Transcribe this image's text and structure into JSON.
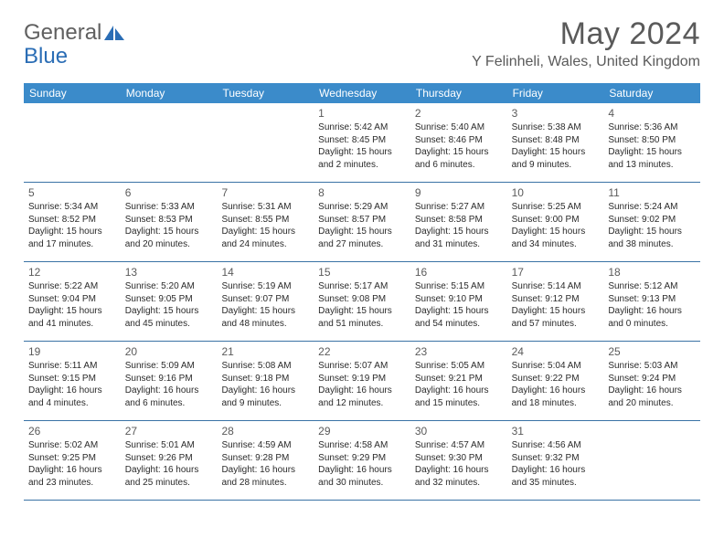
{
  "brand": {
    "part1": "General",
    "part2": "Blue"
  },
  "title": "May 2024",
  "location": "Y Felinheli, Wales, United Kingdom",
  "colors": {
    "header_bg": "#3b8bca",
    "header_text": "#ffffff",
    "border": "#3a72a5",
    "text": "#2a2a2a",
    "muted": "#5a5a5a"
  },
  "dayNames": [
    "Sunday",
    "Monday",
    "Tuesday",
    "Wednesday",
    "Thursday",
    "Friday",
    "Saturday"
  ],
  "weeks": [
    [
      null,
      null,
      null,
      {
        "n": "1",
        "sr": "5:42 AM",
        "ss": "8:45 PM",
        "dl": "15 hours and 2 minutes."
      },
      {
        "n": "2",
        "sr": "5:40 AM",
        "ss": "8:46 PM",
        "dl": "15 hours and 6 minutes."
      },
      {
        "n": "3",
        "sr": "5:38 AM",
        "ss": "8:48 PM",
        "dl": "15 hours and 9 minutes."
      },
      {
        "n": "4",
        "sr": "5:36 AM",
        "ss": "8:50 PM",
        "dl": "15 hours and 13 minutes."
      }
    ],
    [
      {
        "n": "5",
        "sr": "5:34 AM",
        "ss": "8:52 PM",
        "dl": "15 hours and 17 minutes."
      },
      {
        "n": "6",
        "sr": "5:33 AM",
        "ss": "8:53 PM",
        "dl": "15 hours and 20 minutes."
      },
      {
        "n": "7",
        "sr": "5:31 AM",
        "ss": "8:55 PM",
        "dl": "15 hours and 24 minutes."
      },
      {
        "n": "8",
        "sr": "5:29 AM",
        "ss": "8:57 PM",
        "dl": "15 hours and 27 minutes."
      },
      {
        "n": "9",
        "sr": "5:27 AM",
        "ss": "8:58 PM",
        "dl": "15 hours and 31 minutes."
      },
      {
        "n": "10",
        "sr": "5:25 AM",
        "ss": "9:00 PM",
        "dl": "15 hours and 34 minutes."
      },
      {
        "n": "11",
        "sr": "5:24 AM",
        "ss": "9:02 PM",
        "dl": "15 hours and 38 minutes."
      }
    ],
    [
      {
        "n": "12",
        "sr": "5:22 AM",
        "ss": "9:04 PM",
        "dl": "15 hours and 41 minutes."
      },
      {
        "n": "13",
        "sr": "5:20 AM",
        "ss": "9:05 PM",
        "dl": "15 hours and 45 minutes."
      },
      {
        "n": "14",
        "sr": "5:19 AM",
        "ss": "9:07 PM",
        "dl": "15 hours and 48 minutes."
      },
      {
        "n": "15",
        "sr": "5:17 AM",
        "ss": "9:08 PM",
        "dl": "15 hours and 51 minutes."
      },
      {
        "n": "16",
        "sr": "5:15 AM",
        "ss": "9:10 PM",
        "dl": "15 hours and 54 minutes."
      },
      {
        "n": "17",
        "sr": "5:14 AM",
        "ss": "9:12 PM",
        "dl": "15 hours and 57 minutes."
      },
      {
        "n": "18",
        "sr": "5:12 AM",
        "ss": "9:13 PM",
        "dl": "16 hours and 0 minutes."
      }
    ],
    [
      {
        "n": "19",
        "sr": "5:11 AM",
        "ss": "9:15 PM",
        "dl": "16 hours and 4 minutes."
      },
      {
        "n": "20",
        "sr": "5:09 AM",
        "ss": "9:16 PM",
        "dl": "16 hours and 6 minutes."
      },
      {
        "n": "21",
        "sr": "5:08 AM",
        "ss": "9:18 PM",
        "dl": "16 hours and 9 minutes."
      },
      {
        "n": "22",
        "sr": "5:07 AM",
        "ss": "9:19 PM",
        "dl": "16 hours and 12 minutes."
      },
      {
        "n": "23",
        "sr": "5:05 AM",
        "ss": "9:21 PM",
        "dl": "16 hours and 15 minutes."
      },
      {
        "n": "24",
        "sr": "5:04 AM",
        "ss": "9:22 PM",
        "dl": "16 hours and 18 minutes."
      },
      {
        "n": "25",
        "sr": "5:03 AM",
        "ss": "9:24 PM",
        "dl": "16 hours and 20 minutes."
      }
    ],
    [
      {
        "n": "26",
        "sr": "5:02 AM",
        "ss": "9:25 PM",
        "dl": "16 hours and 23 minutes."
      },
      {
        "n": "27",
        "sr": "5:01 AM",
        "ss": "9:26 PM",
        "dl": "16 hours and 25 minutes."
      },
      {
        "n": "28",
        "sr": "4:59 AM",
        "ss": "9:28 PM",
        "dl": "16 hours and 28 minutes."
      },
      {
        "n": "29",
        "sr": "4:58 AM",
        "ss": "9:29 PM",
        "dl": "16 hours and 30 minutes."
      },
      {
        "n": "30",
        "sr": "4:57 AM",
        "ss": "9:30 PM",
        "dl": "16 hours and 32 minutes."
      },
      {
        "n": "31",
        "sr": "4:56 AM",
        "ss": "9:32 PM",
        "dl": "16 hours and 35 minutes."
      },
      null
    ]
  ],
  "labels": {
    "sunrise": "Sunrise: ",
    "sunset": "Sunset: ",
    "daylight": "Daylight: "
  }
}
